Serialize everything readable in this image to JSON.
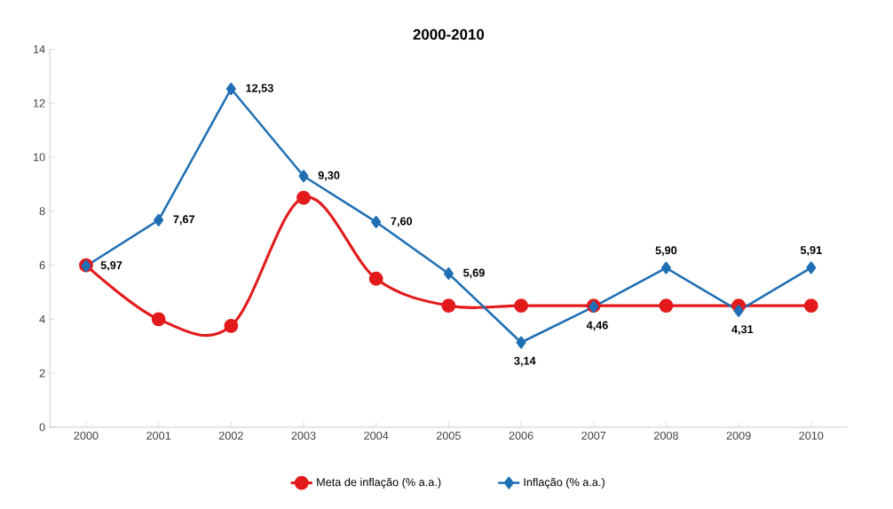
{
  "chart_data": {
    "type": "line",
    "title": "2000-2010",
    "categories": [
      "2000",
      "2001",
      "2002",
      "2003",
      "2004",
      "2005",
      "2006",
      "2007",
      "2008",
      "2009",
      "2010"
    ],
    "series": [
      {
        "name": "Meta de inflação (% a.a.)",
        "color": "#e31a1c",
        "marker": "circle",
        "values": [
          6.0,
          4.0,
          3.75,
          8.5,
          5.5,
          4.5,
          4.5,
          4.5,
          4.5,
          4.5,
          4.5
        ]
      },
      {
        "name": "Inflação (% a.a.)",
        "color": "#1f6fb4",
        "marker": "diamond",
        "type": "line",
        "values": [
          5.97,
          7.67,
          12.53,
          9.3,
          7.6,
          5.69,
          3.14,
          4.46,
          5.9,
          4.31,
          5.91
        ],
        "value_labels": [
          "5,97",
          "7,67",
          "12,53",
          "9,30",
          "7,60",
          "5,69",
          "3,14",
          "4,46",
          "5,90",
          "4,31",
          "5,91"
        ]
      }
    ],
    "ylim": [
      0,
      14
    ],
    "yticks": [
      0,
      2,
      4,
      6,
      8,
      10,
      12,
      14
    ],
    "grid": false,
    "legend": "bottom"
  }
}
